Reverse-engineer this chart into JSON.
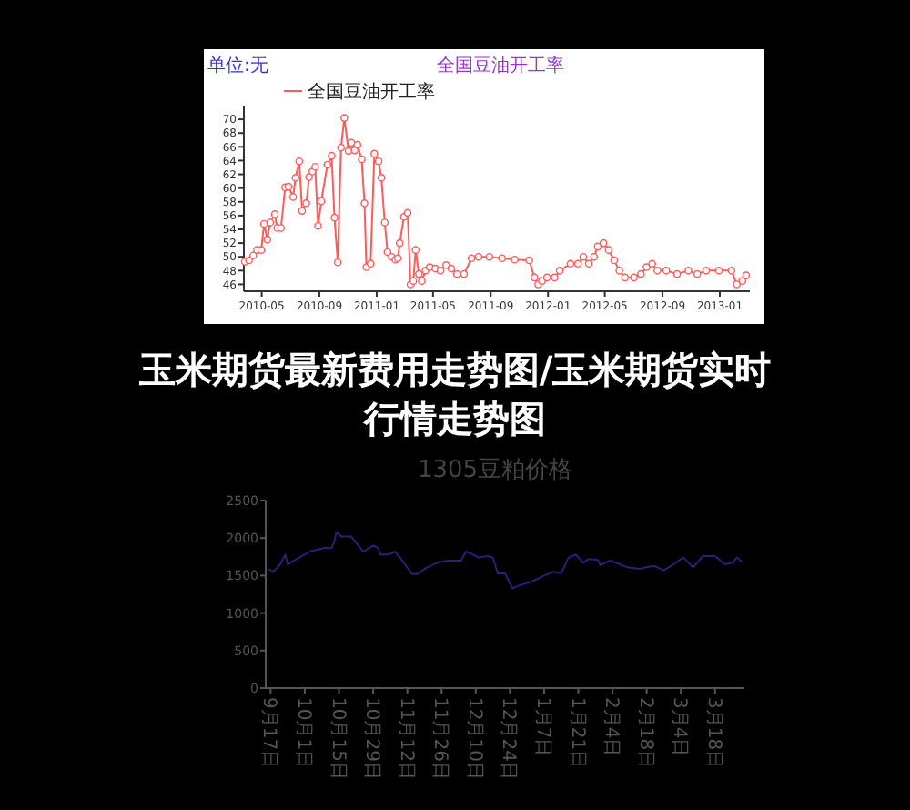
{
  "chart_data": [
    {
      "type": "line",
      "title": "全国豆油开工率",
      "ylabel": "单位:无",
      "x": [
        "2010-03-26",
        "2010-04-04",
        "2010-04-13",
        "2010-04-21",
        "2010-04-30",
        "2010-05-06",
        "2010-05-13",
        "2010-05-19",
        "2010-05-29",
        "2010-06-03",
        "2010-06-11",
        "2010-06-20",
        "2010-06-27",
        "2010-07-07",
        "2010-07-12",
        "2010-07-20",
        "2010-07-26",
        "2010-08-04",
        "2010-08-10",
        "2010-08-17",
        "2010-08-23",
        "2010-08-29",
        "2010-09-05",
        "2010-09-18",
        "2010-09-27",
        "2010-10-03",
        "2010-10-10",
        "2010-10-17",
        "2010-10-24",
        "2010-11-02",
        "2010-11-08",
        "2010-11-15",
        "2010-11-21",
        "2010-11-30",
        "2010-12-06",
        "2010-12-10",
        "2010-12-19",
        "2010-12-27",
        "2011-01-05",
        "2011-01-11",
        "2011-01-18",
        "2011-01-24",
        "2011-02-02",
        "2011-02-10",
        "2011-02-15",
        "2011-02-19",
        "2011-02-28",
        "2011-03-08",
        "2011-03-14",
        "2011-03-20",
        "2011-03-25",
        "2011-04-01",
        "2011-04-07",
        "2011-04-15",
        "2011-04-24",
        "2011-05-06",
        "2011-05-17",
        "2011-05-29",
        "2011-06-09",
        "2011-06-21",
        "2011-07-06",
        "2011-07-22",
        "2011-08-06",
        "2011-08-29",
        "2011-09-25",
        "2011-10-22",
        "2011-11-22",
        "2011-12-03",
        "2011-12-11",
        "2011-12-19",
        "2011-12-30",
        "2012-01-15",
        "2012-01-26",
        "2012-02-18",
        "2012-03-05",
        "2012-03-16",
        "2012-03-28",
        "2012-04-08",
        "2012-04-16",
        "2012-04-28",
        "2012-05-09",
        "2012-05-21",
        "2012-06-01",
        "2012-06-13",
        "2012-07-02",
        "2012-07-17",
        "2012-07-29",
        "2012-08-10",
        "2012-08-21",
        "2012-09-09",
        "2012-10-02",
        "2012-10-26",
        "2012-11-14",
        "2012-12-03",
        "2012-12-30",
        "2013-01-26",
        "2013-02-06",
        "2013-02-18",
        "2013-02-26"
      ],
      "series": [
        {
          "name": "全国豆油开工率",
          "color": "#ff5a5a",
          "values": [
            49.3,
            49.5,
            50.2,
            51,
            51,
            54.8,
            52.5,
            55,
            56.2,
            54.2,
            54.2,
            60.1,
            60.2,
            58.7,
            61.5,
            63.9,
            56.7,
            57.8,
            61.6,
            62.4,
            63.1,
            54.5,
            58.1,
            63.4,
            64.7,
            55.7,
            49.2,
            65.9,
            70.2,
            65.4,
            66.6,
            65.5,
            66.3,
            64.2,
            57.8,
            48.5,
            49,
            65,
            63.9,
            61.5,
            55,
            50.7,
            50,
            49.6,
            49.8,
            52,
            55.8,
            56.4,
            46,
            46.5,
            51,
            47.5,
            46.5,
            48,
            48.5,
            48.3,
            48,
            48.8,
            48.3,
            47.5,
            47.5,
            49.8,
            50,
            50,
            49.8,
            49.6,
            49.5,
            47,
            46,
            46.5,
            47,
            47,
            48,
            49,
            49,
            50,
            49,
            50,
            51.5,
            52,
            51,
            49.5,
            48,
            47,
            47,
            47.5,
            48.5,
            49,
            48,
            48,
            47.5,
            48,
            47.5,
            48,
            48,
            48,
            46,
            46.5,
            47.3
          ]
        }
      ],
      "xlim": [
        "2010-03-24",
        "2013-03-06"
      ],
      "xticks": [
        {
          "value": "2010-05",
          "label": "2010-05"
        },
        {
          "value": "2010-09",
          "label": "2010-09"
        },
        {
          "value": "2011-01",
          "label": "2011-01"
        },
        {
          "value": "2011-05",
          "label": "2011-05"
        },
        {
          "value": "2011-09",
          "label": "2011-09"
        },
        {
          "value": "2012-01",
          "label": "2012-01"
        },
        {
          "value": "2012-05",
          "label": "2012-05"
        },
        {
          "value": "2012-09",
          "label": "2012-09"
        },
        {
          "value": "2013-01",
          "label": "2013-01"
        }
      ],
      "ylim": [
        45,
        72
      ],
      "yticks": [
        46,
        48,
        50,
        52,
        54,
        56,
        58,
        60,
        62,
        64,
        66,
        68,
        70
      ],
      "legend": "top left",
      "marker": "circle"
    },
    {
      "type": "other",
      "title": "玉米期货最新费用走势图/玉米期货实时行情走势图"
    },
    {
      "type": "line",
      "title": "1305豆粕价格",
      "x": [
        "2012-09-16",
        "2012-09-18",
        "2012-09-21",
        "2012-09-23",
        "2012-09-24",
        "2012-09-26",
        "2012-10-03",
        "2012-10-09",
        "2012-10-12",
        "2012-10-13",
        "2012-10-14",
        "2012-10-16",
        "2012-10-20",
        "2012-10-23",
        "2012-10-25",
        "2012-10-29",
        "2012-10-31",
        "2012-11-01",
        "2012-11-04",
        "2012-11-07",
        "2012-11-09",
        "2012-11-14",
        "2012-11-16",
        "2012-11-20",
        "2012-11-25",
        "2012-11-29",
        "2012-12-04",
        "2012-12-06",
        "2012-12-09",
        "2012-12-11",
        "2012-12-15",
        "2012-12-17",
        "2012-12-19",
        "2012-12-22",
        "2012-12-25",
        "2012-12-28",
        "2013-01-02",
        "2013-01-07",
        "2013-01-11",
        "2013-01-14",
        "2013-01-17",
        "2013-01-20",
        "2013-01-23",
        "2013-01-25",
        "2013-01-29",
        "2013-01-30",
        "2013-02-03",
        "2013-02-07",
        "2013-02-10",
        "2013-02-15",
        "2013-02-18",
        "2013-02-21",
        "2013-02-25",
        "2013-03-01",
        "2013-03-05",
        "2013-03-09",
        "2013-03-13",
        "2013-03-18",
        "2013-03-22",
        "2013-03-25",
        "2013-03-27",
        "2013-03-29"
      ],
      "series": [
        {
          "color": "#23237a",
          "values": [
            1590,
            1550,
            1650,
            1780,
            1650,
            1690,
            1820,
            1870,
            1870,
            1940,
            2080,
            2020,
            2020,
            1900,
            1820,
            1900,
            1870,
            1780,
            1780,
            1820,
            1740,
            1520,
            1520,
            1610,
            1680,
            1700,
            1700,
            1820,
            1780,
            1740,
            1760,
            1740,
            1530,
            1530,
            1330,
            1370,
            1420,
            1500,
            1550,
            1530,
            1740,
            1780,
            1670,
            1720,
            1710,
            1640,
            1700,
            1650,
            1610,
            1590,
            1610,
            1630,
            1570,
            1650,
            1740,
            1610,
            1760,
            1760,
            1650,
            1670,
            1740,
            1680
          ]
        }
      ],
      "xlim": [
        "2012-09-15",
        "2013-03-30"
      ],
      "xticks": [
        {
          "value": "2012-09-17",
          "label": "9月17日"
        },
        {
          "value": "2012-10-01",
          "label": "10月1日"
        },
        {
          "value": "2012-10-15",
          "label": "10月15日"
        },
        {
          "value": "2012-10-29",
          "label": "10月29日"
        },
        {
          "value": "2012-11-12",
          "label": "11月12日"
        },
        {
          "value": "2012-11-26",
          "label": "11月26日"
        },
        {
          "value": "2012-12-10",
          "label": "12月10日"
        },
        {
          "value": "2012-12-24",
          "label": "12月24日"
        },
        {
          "value": "2013-01-07",
          "label": "1月7日"
        },
        {
          "value": "2013-01-21",
          "label": "1月21日"
        },
        {
          "value": "2013-02-04",
          "label": "2月4日"
        },
        {
          "value": "2013-02-18",
          "label": "2月18日"
        },
        {
          "value": "2013-03-04",
          "label": "3月4日"
        },
        {
          "value": "2013-03-18",
          "label": "3月18日"
        }
      ],
      "ylim": [
        0,
        2500
      ],
      "yticks": [
        0,
        500,
        1000,
        1500,
        2000,
        2500
      ],
      "marker": "none"
    }
  ]
}
